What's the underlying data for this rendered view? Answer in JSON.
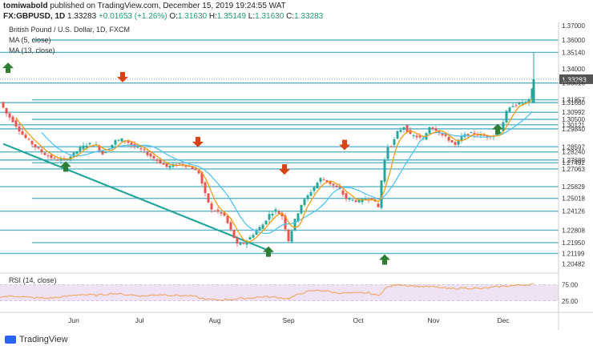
{
  "header": {
    "author": "tomiwabold",
    "published": "published on TradingView.com, December 15, 2019 19:24:55 WAT",
    "symbol_line": "FX:GBPUSD, 1D",
    "last": "1.33283",
    "change": "+0.01653 (+1.26%)",
    "o_label": "O:",
    "o": "1.31630",
    "h_label": "H:",
    "h": "1.35149",
    "l_label": "L:",
    "l": "1.31630",
    "c_label": "C:",
    "c": "1.33283"
  },
  "legend": {
    "title": "British Pound / U.S. Dollar, 1D, FXCM",
    "ma5": "MA (5, close)",
    "ma13": "MA (13, close)"
  },
  "rsi": {
    "label": "RSI (14, close)",
    "upper": "75.00",
    "lower": "25.00"
  },
  "footer": {
    "brand": "TradingView"
  },
  "colors": {
    "up": "#26a69a",
    "down": "#ef5350",
    "ma5": "#f39c12",
    "ma13": "#4fc3f7",
    "level": "#5bb5c8",
    "trend": "#26a69a",
    "rsi": "#f0a050",
    "rsi_band": "#efe2f5"
  },
  "chart_data": {
    "type": "candlestick",
    "symbol": "GBPUSD",
    "timeframe": "1D",
    "x_labels": [
      "Jun",
      "Jul",
      "Aug",
      "Sep",
      "Oct",
      "Nov",
      "Dec"
    ],
    "y_tick_labels": [
      "1.37000",
      "1.36000",
      "1.35140",
      "1.34000",
      "1.33283",
      "1.33016",
      "1.31857",
      "1.31660",
      "1.30992",
      "1.30500",
      "1.30121",
      "1.29840",
      "1.28597",
      "1.28240",
      "1.27680",
      "1.27492",
      "1.27063",
      "1.25829",
      "1.25018",
      "1.24126",
      "1.22808",
      "1.21950",
      "1.21199",
      "1.20482"
    ],
    "ylim": [
      1.2,
      1.37
    ],
    "current_price": 1.33283,
    "levels": [
      1.36,
      1.3514,
      1.3302,
      1.3186,
      1.3166,
      1.3099,
      1.305,
      1.3012,
      1.2984,
      1.286,
      1.2824,
      1.2768,
      1.2749,
      1.2706,
      1.2583,
      1.2502,
      1.2413,
      1.2281,
      1.2195,
      1.212
    ],
    "price_path": [
      [
        0,
        1.317
      ],
      [
        8,
        1.309
      ],
      [
        16,
        1.304
      ],
      [
        22,
        1.299
      ],
      [
        30,
        1.293
      ],
      [
        38,
        1.289
      ],
      [
        48,
        1.284
      ],
      [
        58,
        1.28
      ],
      [
        70,
        1.277
      ],
      [
        80,
        1.277
      ],
      [
        90,
        1.28
      ],
      [
        100,
        1.285
      ],
      [
        110,
        1.288
      ],
      [
        120,
        1.287
      ],
      [
        128,
        1.281
      ],
      [
        136,
        1.285
      ],
      [
        144,
        1.29
      ],
      [
        152,
        1.291
      ],
      [
        160,
        1.289
      ],
      [
        168,
        1.286
      ],
      [
        176,
        1.284
      ],
      [
        184,
        1.281
      ],
      [
        192,
        1.278
      ],
      [
        200,
        1.275
      ],
      [
        208,
        1.272
      ],
      [
        216,
        1.273
      ],
      [
        224,
        1.274
      ],
      [
        232,
        1.273
      ],
      [
        240,
        1.271
      ],
      [
        248,
        1.268
      ],
      [
        256,
        1.253
      ],
      [
        264,
        1.242
      ],
      [
        272,
        1.241
      ],
      [
        280,
        1.238
      ],
      [
        288,
        1.228
      ],
      [
        296,
        1.218
      ],
      [
        304,
        1.219
      ],
      [
        312,
        1.223
      ],
      [
        320,
        1.228
      ],
      [
        328,
        1.232
      ],
      [
        336,
        1.239
      ],
      [
        344,
        1.242
      ],
      [
        352,
        1.238
      ],
      [
        360,
        1.221
      ],
      [
        368,
        1.235
      ],
      [
        376,
        1.246
      ],
      [
        384,
        1.252
      ],
      [
        392,
        1.258
      ],
      [
        400,
        1.264
      ],
      [
        408,
        1.262
      ],
      [
        416,
        1.259
      ],
      [
        424,
        1.256
      ],
      [
        432,
        1.25
      ],
      [
        440,
        1.249
      ],
      [
        448,
        1.248
      ],
      [
        456,
        1.25
      ],
      [
        464,
        1.25
      ],
      [
        472,
        1.244
      ],
      [
        478,
        1.272
      ],
      [
        484,
        1.286
      ],
      [
        490,
        1.288
      ],
      [
        496,
        1.296
      ],
      [
        504,
        1.3
      ],
      [
        512,
        1.294
      ],
      [
        520,
        1.293
      ],
      [
        528,
        1.291
      ],
      [
        536,
        1.3
      ],
      [
        544,
        1.298
      ],
      [
        552,
        1.294
      ],
      [
        560,
        1.291
      ],
      [
        568,
        1.287
      ],
      [
        576,
        1.293
      ],
      [
        584,
        1.295
      ],
      [
        592,
        1.295
      ],
      [
        600,
        1.294
      ],
      [
        608,
        1.293
      ],
      [
        616,
        1.294
      ],
      [
        624,
        1.297
      ],
      [
        632,
        1.31
      ],
      [
        640,
        1.315
      ],
      [
        648,
        1.316
      ],
      [
        656,
        1.317
      ],
      [
        662,
        1.318
      ],
      [
        666,
        1.3328
      ]
    ],
    "high_spike": [
      666,
      1.3515
    ],
    "trendline": [
      [
        4,
        1.288
      ],
      [
        340,
        1.213
      ]
    ],
    "rsi_values": [
      [
        0,
        38
      ],
      [
        20,
        40
      ],
      [
        40,
        35
      ],
      [
        60,
        33
      ],
      [
        80,
        38
      ],
      [
        100,
        45
      ],
      [
        120,
        42
      ],
      [
        140,
        48
      ],
      [
        160,
        44
      ],
      [
        180,
        40
      ],
      [
        200,
        45
      ],
      [
        220,
        42
      ],
      [
        240,
        40
      ],
      [
        256,
        30
      ],
      [
        270,
        28
      ],
      [
        290,
        30
      ],
      [
        310,
        34
      ],
      [
        330,
        38
      ],
      [
        350,
        35
      ],
      [
        360,
        32
      ],
      [
        380,
        52
      ],
      [
        400,
        58
      ],
      [
        420,
        50
      ],
      [
        440,
        48
      ],
      [
        460,
        50
      ],
      [
        472,
        40
      ],
      [
        480,
        62
      ],
      [
        490,
        72
      ],
      [
        500,
        75
      ],
      [
        520,
        70
      ],
      [
        540,
        68
      ],
      [
        560,
        62
      ],
      [
        580,
        65
      ],
      [
        600,
        62
      ],
      [
        620,
        68
      ],
      [
        640,
        72
      ],
      [
        660,
        75
      ],
      [
        666,
        78
      ]
    ],
    "rsi_ylim": [
      0,
      100
    ],
    "rsi_band": [
      25,
      75
    ],
    "annotations": [
      {
        "type": "arrow-up",
        "x": 82,
        "price": 1.272
      },
      {
        "type": "arrow-down",
        "x": 153,
        "price": 1.3345
      },
      {
        "type": "arrow-down",
        "x": 247,
        "price": 1.2895
      },
      {
        "type": "arrow-down",
        "x": 355,
        "price": 1.2705
      },
      {
        "type": "arrow-up",
        "x": 335,
        "price": 1.213
      },
      {
        "type": "arrow-down",
        "x": 430,
        "price": 1.2875
      },
      {
        "type": "arrow-up",
        "x": 480,
        "price": 1.2075
      },
      {
        "type": "arrow-up",
        "x": 621,
        "price": 1.298
      },
      {
        "type": "arrow-up",
        "x": 10,
        "price": 1.3405
      }
    ]
  }
}
